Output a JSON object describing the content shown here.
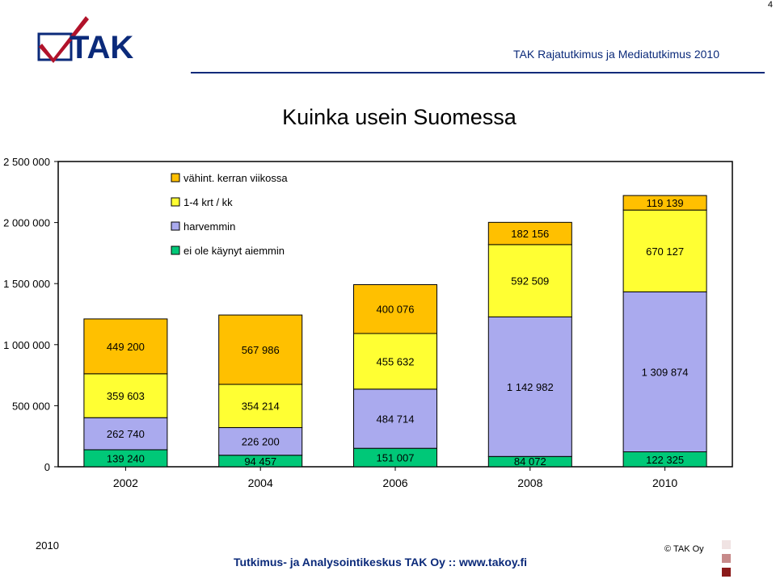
{
  "page_number": "4",
  "header": {
    "logo_text": "TAK",
    "title": "TAK Rajatutkimus ja Mediatutkimus 2010"
  },
  "chart_title": "Kuinka usein Suomessa",
  "colors": {
    "accent": "#0b2a7a",
    "weekly": "#ffc000",
    "monthly": "#ffff33",
    "less": "#aaaaee",
    "never": "#00c878",
    "grid": "#c0c0c0"
  },
  "chart_data": {
    "type": "bar",
    "stacked": true,
    "categories": [
      "2002",
      "2004",
      "2006",
      "2008",
      "2010"
    ],
    "ylim": [
      0,
      2500000
    ],
    "y_ticks": [
      0,
      500000,
      1000000,
      1500000,
      2000000,
      2500000
    ],
    "y_tick_labels": [
      "0",
      "500 000",
      "1 000 000",
      "1 500 000",
      "2 000 000",
      "2 500 000"
    ],
    "grid": false,
    "legend_placement": "top-left inside plot",
    "series": [
      {
        "name": "ei ole käynyt aiemmin",
        "color": "#00c878",
        "values": [
          139240,
          94457,
          151007,
          84072,
          122325
        ],
        "labels": [
          "139 240",
          "94 457",
          "151 007",
          "84 072",
          "122 325"
        ]
      },
      {
        "name": "harvemmin",
        "color": "#aaaaee",
        "values": [
          262740,
          226200,
          484714,
          1142982,
          1309874
        ],
        "labels": [
          "262 740",
          "226 200",
          "484 714",
          "1 142 982",
          "1 309 874"
        ]
      },
      {
        "name": "1-4 krt / kk",
        "color": "#ffff33",
        "values": [
          359603,
          354214,
          455632,
          592509,
          670127
        ],
        "labels": [
          "359 603",
          "354 214",
          "455 632",
          "592 509",
          "670 127"
        ]
      },
      {
        "name": "vähint. kerran viikossa",
        "color": "#ffc000",
        "values": [
          449200,
          567986,
          400076,
          182156,
          119139
        ],
        "labels": [
          "449 200",
          "567 986",
          "400 076",
          "182 156",
          "119 139"
        ]
      }
    ],
    "legend_order": [
      "vähint. kerran viikossa",
      "1-4 krt / kk",
      "harvemmin",
      "ei ole käynyt aiemmin"
    ]
  },
  "footer": {
    "year": "2010",
    "text": "Tutkimus- ja Analysointikeskus TAK Oy  ::  www.takoy.fi",
    "copyright": "© TAK Oy"
  }
}
